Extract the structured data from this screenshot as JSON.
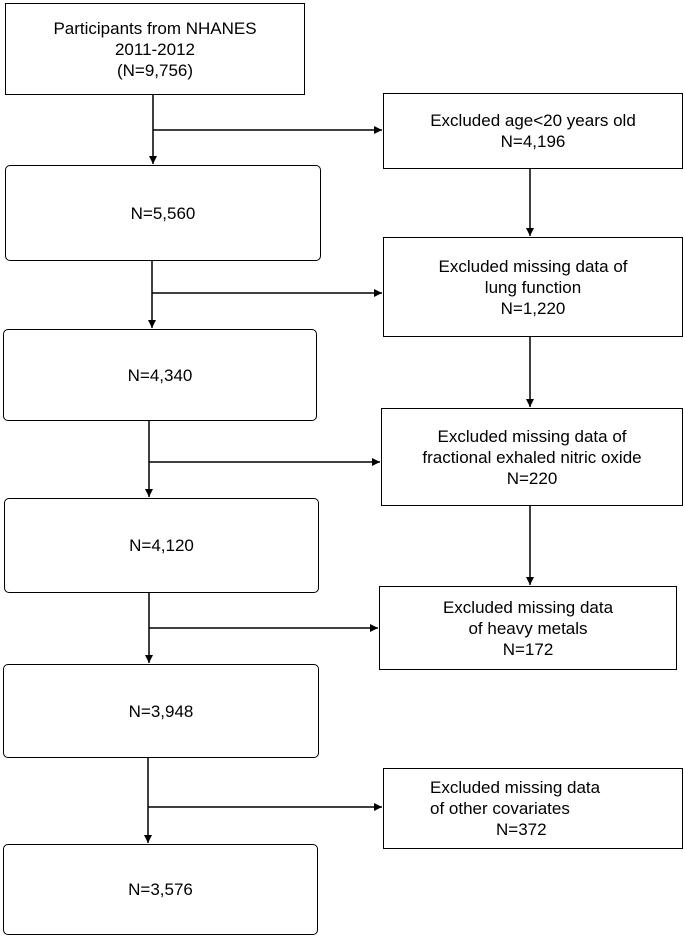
{
  "main_boxes": [
    {
      "lines": [
        "Participants from NHANES",
        "2011-2012",
        "(N=9,756)"
      ]
    },
    {
      "lines": [
        "N=5,560"
      ]
    },
    {
      "lines": [
        "N=4,340"
      ]
    },
    {
      "lines": [
        "N=4,120"
      ]
    },
    {
      "lines": [
        "N=3,948"
      ]
    },
    {
      "lines": [
        "N=3,576"
      ]
    }
  ],
  "exclusion_boxes": [
    {
      "lines": [
        "Excluded age<20 years old",
        "N=4,196"
      ]
    },
    {
      "lines": [
        "Excluded missing data of",
        "lung function",
        "N=1,220"
      ]
    },
    {
      "lines": [
        "Excluded missing data of",
        "fractional exhaled nitric oxide",
        "N=220"
      ]
    },
    {
      "lines": [
        "Excluded missing data",
        "of heavy metals",
        "N=172"
      ]
    },
    {
      "lines": [
        "Excluded missing data",
        "of other covariates",
        "N=372"
      ]
    }
  ]
}
